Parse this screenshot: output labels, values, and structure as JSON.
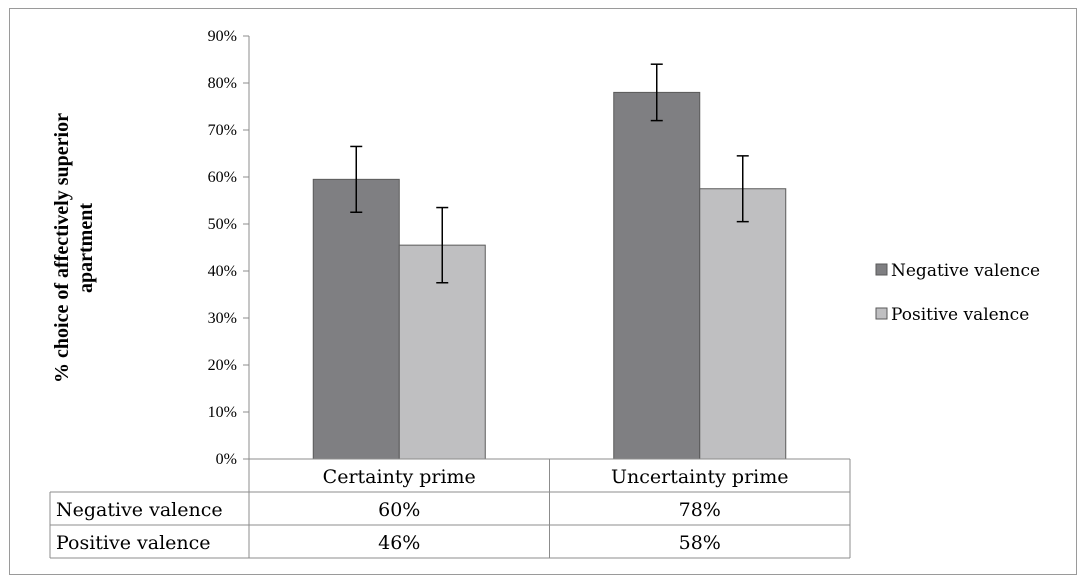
{
  "chart_data": {
    "type": "bar",
    "title": "",
    "xlabel": "",
    "ylabel": "% choice of affectively superior apartment",
    "ylabel_lines": [
      "% choice of affectively superior",
      "apartment"
    ],
    "ylim": [
      0,
      90
    ],
    "yticks": [
      "0%",
      "10%",
      "20%",
      "30%",
      "40%",
      "50%",
      "60%",
      "70%",
      "80%",
      "90%"
    ],
    "categories": [
      "Certainty prime",
      "Uncertainty prime"
    ],
    "series": [
      {
        "name": "Negative valence",
        "values": [
          59.5,
          78
        ],
        "error": [
          7,
          6
        ],
        "table_labels": [
          "60%",
          "78%"
        ],
        "color": "#7f7f82"
      },
      {
        "name": "Positive valence",
        "values": [
          45.5,
          57.5
        ],
        "error": [
          8,
          7
        ],
        "table_labels": [
          "46%",
          "58%"
        ],
        "color": "#bfbfc1"
      }
    ],
    "legend_position": "right",
    "grid": false,
    "data_table": true
  }
}
